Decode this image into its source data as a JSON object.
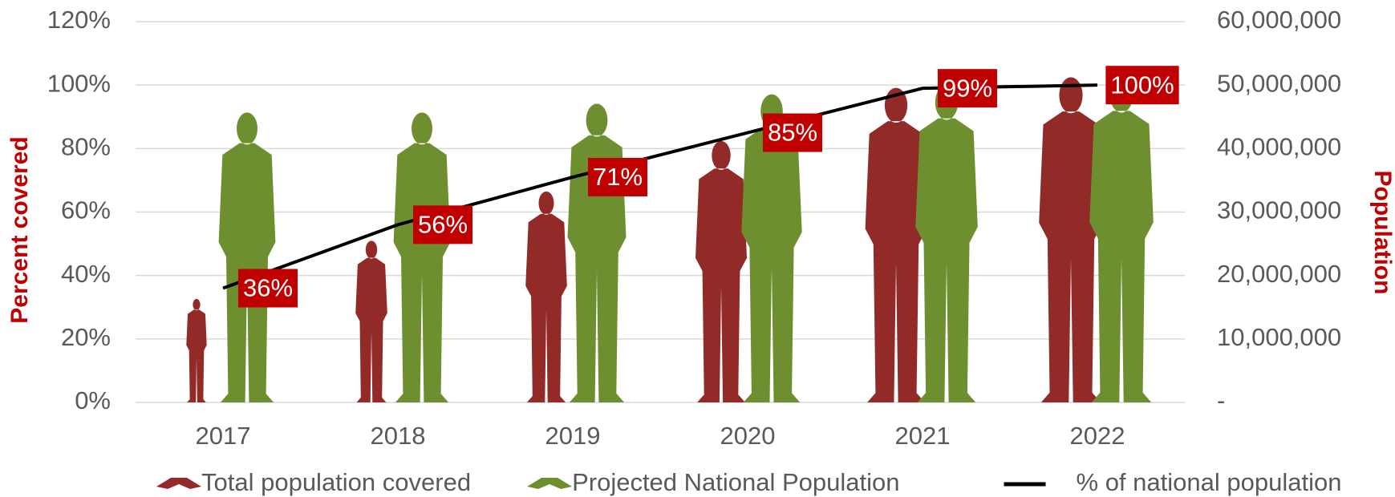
{
  "chart_data": {
    "type": "bar",
    "categories": [
      "2017",
      "2018",
      "2019",
      "2020",
      "2021",
      "2022"
    ],
    "series": [
      {
        "name": "Total population covered",
        "color": "#922b27",
        "axis": "y2",
        "values": [
          16400000,
          25600000,
          33400000,
          41400000,
          49800000,
          51500000
        ]
      },
      {
        "name": "Projected National Population",
        "color": "#6e8f2f",
        "axis": "y2",
        "values": [
          45900000,
          45900000,
          47300000,
          48800000,
          50300000,
          51600000
        ]
      },
      {
        "name": "% of national population",
        "color": "#000000",
        "type": "line",
        "values": [
          36,
          56,
          71,
          85,
          99,
          100
        ],
        "value_labels": [
          "36%",
          "56%",
          "71%",
          "85%",
          "99%",
          "100%"
        ],
        "label_color": "#c00000"
      }
    ],
    "ylabel": "Percent covered",
    "y2label": "Population",
    "ylim": [
      0,
      120
    ],
    "yticks": [
      {
        "value": 0,
        "label": "0%"
      },
      {
        "value": 20,
        "label": "20%"
      },
      {
        "value": 40,
        "label": "40%"
      },
      {
        "value": 60,
        "label": "60%"
      },
      {
        "value": 80,
        "label": "80%"
      },
      {
        "value": 100,
        "label": "100%"
      },
      {
        "value": 120,
        "label": "120%"
      }
    ],
    "y2lim": [
      0,
      60000000
    ],
    "y2ticks": [
      {
        "value": 0,
        "label": "-"
      },
      {
        "value": 10000000,
        "label": "10,000,000"
      },
      {
        "value": 20000000,
        "label": "20,000,000"
      },
      {
        "value": 30000000,
        "label": "30,000,000"
      },
      {
        "value": 40000000,
        "label": "40,000,000"
      },
      {
        "value": 50000000,
        "label": "50,000,000"
      },
      {
        "value": 60000000,
        "label": "60,000,000"
      }
    ],
    "grid": true,
    "legend": "bottom"
  }
}
